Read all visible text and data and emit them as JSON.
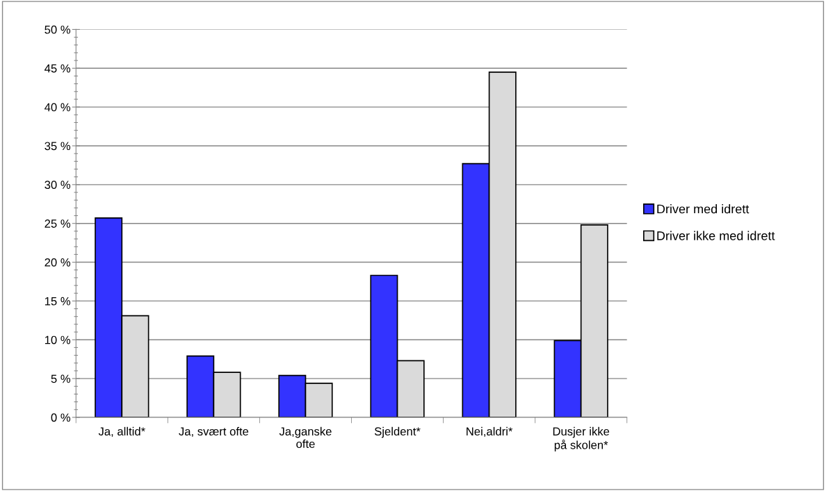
{
  "chart_data": {
    "type": "bar",
    "categories": [
      "Ja, alltid*",
      "Ja, svært ofte",
      "Ja,ganske\nofte",
      "Sjeldent*",
      "Nei,aldri*",
      "Dusjer ikke\npå skolen*"
    ],
    "series": [
      {
        "name": "Driver med idrett",
        "color": "#3333ff",
        "values": [
          25.7,
          7.9,
          5.4,
          18.3,
          32.7,
          9.9
        ]
      },
      {
        "name": "Driver ikke med idrett",
        "color": "#dadada",
        "values": [
          13.1,
          5.8,
          4.4,
          7.3,
          44.5,
          24.8
        ]
      }
    ],
    "ylim": [
      0,
      50
    ],
    "yticks": [
      {
        "value": 0,
        "label": "0 %"
      },
      {
        "value": 1,
        "label": null
      },
      {
        "value": 2,
        "label": null
      },
      {
        "value": 3,
        "label": null
      },
      {
        "value": 4,
        "label": null
      },
      {
        "value": 5,
        "label": "5 %"
      },
      {
        "value": 6,
        "label": null
      },
      {
        "value": 7,
        "label": null
      },
      {
        "value": 8,
        "label": null
      },
      {
        "value": 9,
        "label": null
      },
      {
        "value": 10,
        "label": "10 %"
      },
      {
        "value": 11,
        "label": null
      },
      {
        "value": 12,
        "label": null
      },
      {
        "value": 13,
        "label": null
      },
      {
        "value": 14,
        "label": null
      },
      {
        "value": 15,
        "label": "15 %"
      },
      {
        "value": 16,
        "label": null
      },
      {
        "value": 17,
        "label": null
      },
      {
        "value": 18,
        "label": null
      },
      {
        "value": 19,
        "label": null
      },
      {
        "value": 20,
        "label": "20 %"
      },
      {
        "value": 21,
        "label": null
      },
      {
        "value": 22,
        "label": null
      },
      {
        "value": 23,
        "label": null
      },
      {
        "value": 24,
        "label": null
      },
      {
        "value": 25,
        "label": "25 %"
      },
      {
        "value": 26,
        "label": null
      },
      {
        "value": 27,
        "label": null
      },
      {
        "value": 28,
        "label": null
      },
      {
        "value": 29,
        "label": null
      },
      {
        "value": 30,
        "label": "30 %"
      },
      {
        "value": 31,
        "label": null
      },
      {
        "value": 32,
        "label": null
      },
      {
        "value": 33,
        "label": null
      },
      {
        "value": 34,
        "label": null
      },
      {
        "value": 35,
        "label": "35 %"
      },
      {
        "value": 36,
        "label": null
      },
      {
        "value": 37,
        "label": null
      },
      {
        "value": 38,
        "label": null
      },
      {
        "value": 39,
        "label": null
      },
      {
        "value": 40,
        "label": "40 %"
      },
      {
        "value": 41,
        "label": null
      },
      {
        "value": 42,
        "label": null
      },
      {
        "value": 43,
        "label": null
      },
      {
        "value": 44,
        "label": null
      },
      {
        "value": 45,
        "label": "45 %"
      },
      {
        "value": 46,
        "label": null
      },
      {
        "value": 47,
        "label": null
      },
      {
        "value": 48,
        "label": null
      },
      {
        "value": 49,
        "label": null
      },
      {
        "value": 50,
        "label": "50 %"
      }
    ],
    "grid": "y",
    "legend": "right"
  }
}
